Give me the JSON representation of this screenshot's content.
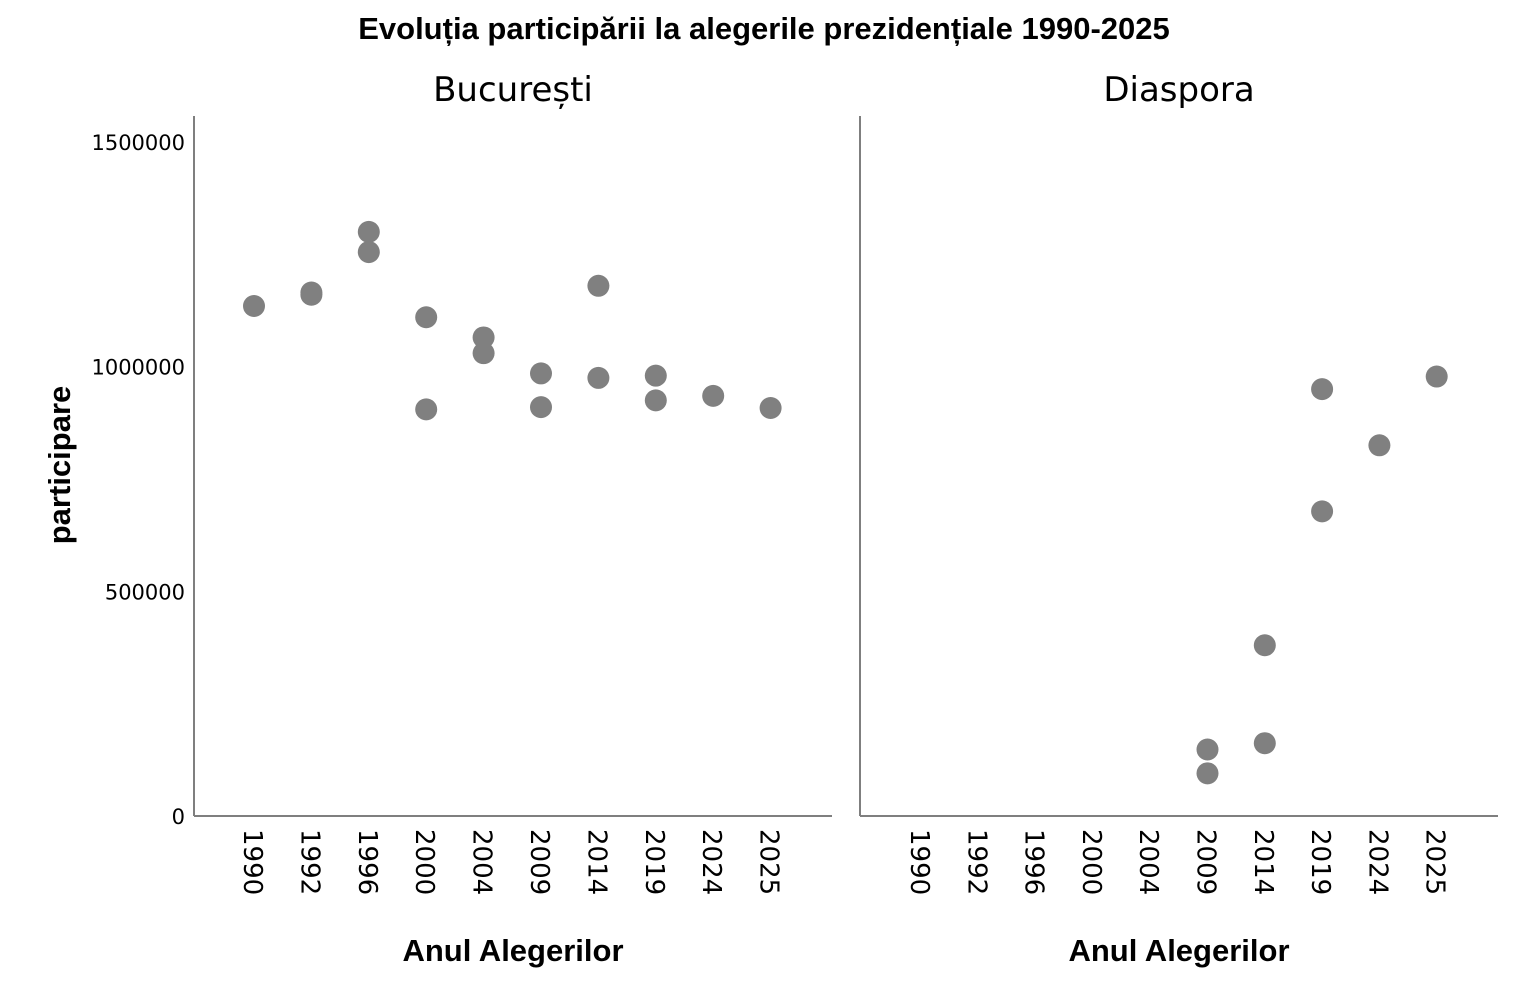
{
  "chart_data": {
    "type": "scatter",
    "title": "Evoluția participării la alegerile prezidențiale 1990-2025",
    "ylabel": "participare",
    "xlabel": "Anul Alegerilor",
    "categories": [
      "1990",
      "1992",
      "1996",
      "2000",
      "2004",
      "2009",
      "2014",
      "2019",
      "2024",
      "2025"
    ],
    "yticks": [
      0,
      500000,
      1000000,
      1500000
    ],
    "ylim": [
      0,
      1500000
    ],
    "grid": false,
    "point_color": "#808080",
    "panels": [
      {
        "name": "București",
        "points": [
          {
            "x": "1990",
            "y": 1135000
          },
          {
            "x": "1992",
            "y": 1165000
          },
          {
            "x": "1992",
            "y": 1160000
          },
          {
            "x": "1996",
            "y": 1300000
          },
          {
            "x": "1996",
            "y": 1255000
          },
          {
            "x": "2000",
            "y": 1110000
          },
          {
            "x": "2000",
            "y": 905000
          },
          {
            "x": "2004",
            "y": 1065000
          },
          {
            "x": "2004",
            "y": 1030000
          },
          {
            "x": "2009",
            "y": 985000
          },
          {
            "x": "2009",
            "y": 910000
          },
          {
            "x": "2014",
            "y": 1180000
          },
          {
            "x": "2014",
            "y": 975000
          },
          {
            "x": "2019",
            "y": 980000
          },
          {
            "x": "2019",
            "y": 925000
          },
          {
            "x": "2024",
            "y": 935000
          },
          {
            "x": "2025",
            "y": 908000
          }
        ]
      },
      {
        "name": "Diaspora",
        "points": [
          {
            "x": "2009",
            "y": 148000
          },
          {
            "x": "2009",
            "y": 95000
          },
          {
            "x": "2014",
            "y": 380000
          },
          {
            "x": "2014",
            "y": 162000
          },
          {
            "x": "2019",
            "y": 950000
          },
          {
            "x": "2019",
            "y": 678000
          },
          {
            "x": "2024",
            "y": 825000
          },
          {
            "x": "2025",
            "y": 978000
          }
        ]
      }
    ]
  }
}
